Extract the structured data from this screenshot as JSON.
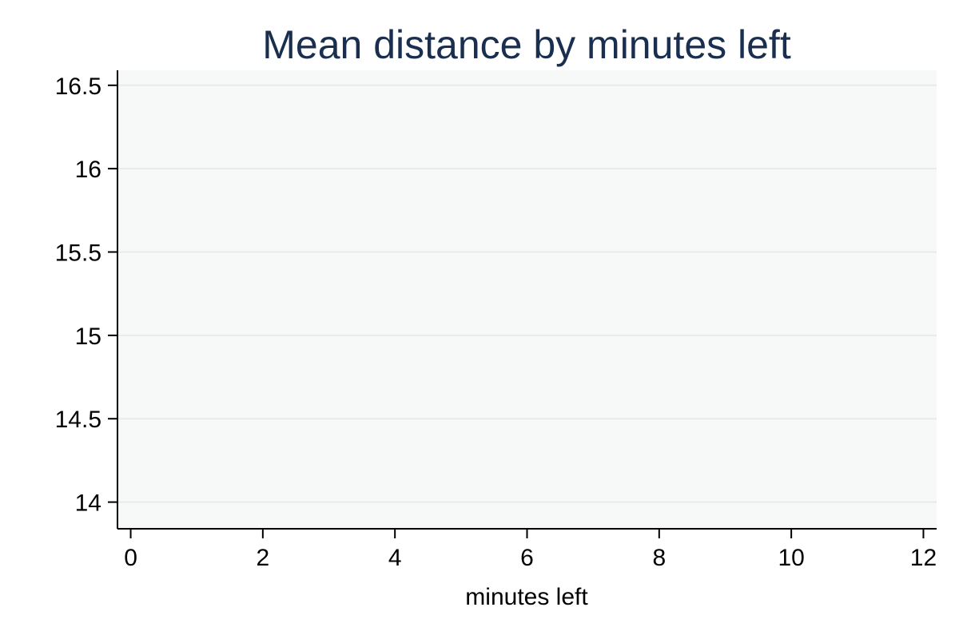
{
  "chart_data": {
    "type": "line",
    "title": "Mean distance by minutes left",
    "xlabel": "minutes left",
    "ylabel": "",
    "xlim": [
      -0.2,
      12.2
    ],
    "ylim": [
      13.84,
      16.59
    ],
    "x_ticks": [
      0,
      2,
      4,
      6,
      8,
      10,
      12
    ],
    "y_ticks": [
      14,
      14.5,
      15,
      15.5,
      16,
      16.5
    ],
    "x_tick_labels": [
      "0",
      "2",
      "4",
      "6",
      "8",
      "10",
      "12"
    ],
    "y_tick_labels": [
      "14",
      "14.5",
      "15",
      "15.5",
      "16",
      "16.5"
    ],
    "grid": true,
    "series": []
  },
  "colors": {
    "title": "#1a2e4f",
    "plot_background": "#f7f8f8",
    "gridline": "#e8eaea",
    "axis": "#000000"
  }
}
